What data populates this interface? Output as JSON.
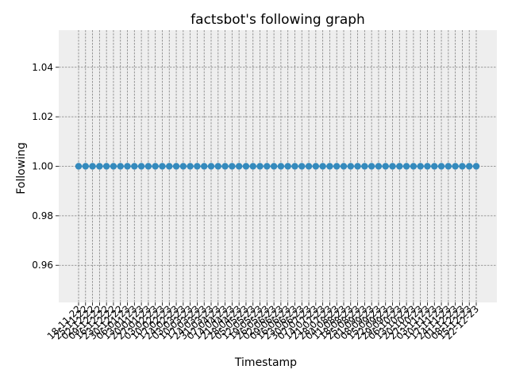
{
  "chart_data": {
    "type": "line",
    "title": "factsbot's following graph",
    "xlabel": "Timestamp",
    "ylabel": "Following",
    "categories": [
      "18-11-22",
      "25-11-22",
      "02-12-22",
      "09-12-22",
      "16-12-22",
      "23-12-22",
      "30-12-22",
      "06-01-23",
      "13-01-23",
      "20-01-23",
      "27-01-23",
      "03-02-23",
      "10-02-23",
      "17-02-23",
      "24-02-23",
      "03-03-23",
      "10-03-23",
      "17-03-23",
      "24-03-23",
      "31-03-23",
      "07-04-23",
      "14-04-23",
      "21-04-23",
      "28-04-23",
      "05-05-23",
      "12-05-23",
      "19-05-23",
      "26-05-23",
      "02-06-23",
      "09-06-23",
      "16-06-23",
      "23-06-23",
      "30-06-23",
      "07-07-23",
      "14-07-23",
      "21-07-23",
      "28-07-23",
      "04-08-23",
      "11-08-23",
      "18-08-23",
      "25-08-23",
      "01-09-23",
      "08-09-23",
      "15-09-23",
      "22-09-23",
      "29-09-23",
      "06-10-23",
      "13-10-23",
      "20-10-23",
      "27-10-23",
      "03-11-23",
      "10-11-23",
      "17-11-23",
      "24-11-23",
      "01-12-23",
      "08-12-23",
      "15-12-23",
      "22-12-23"
    ],
    "series": [
      {
        "values": [
          1,
          1,
          1,
          1,
          1,
          1,
          1,
          1,
          1,
          1,
          1,
          1,
          1,
          1,
          1,
          1,
          1,
          1,
          1,
          1,
          1,
          1,
          1,
          1,
          1,
          1,
          1,
          1,
          1,
          1,
          1,
          1,
          1,
          1,
          1,
          1,
          1,
          1,
          1,
          1,
          1,
          1,
          1,
          1,
          1,
          1,
          1,
          1,
          1,
          1,
          1,
          1,
          1,
          1,
          1,
          1,
          1,
          1
        ],
        "color": "#348abd"
      }
    ],
    "yticks": [
      "0.96",
      "0.98",
      "1.00",
      "1.02",
      "1.04"
    ],
    "ylim": [
      0.945,
      1.055
    ],
    "grid": true,
    "marker": "circle",
    "background": "#eeeeee",
    "grid_color": "#808080"
  }
}
